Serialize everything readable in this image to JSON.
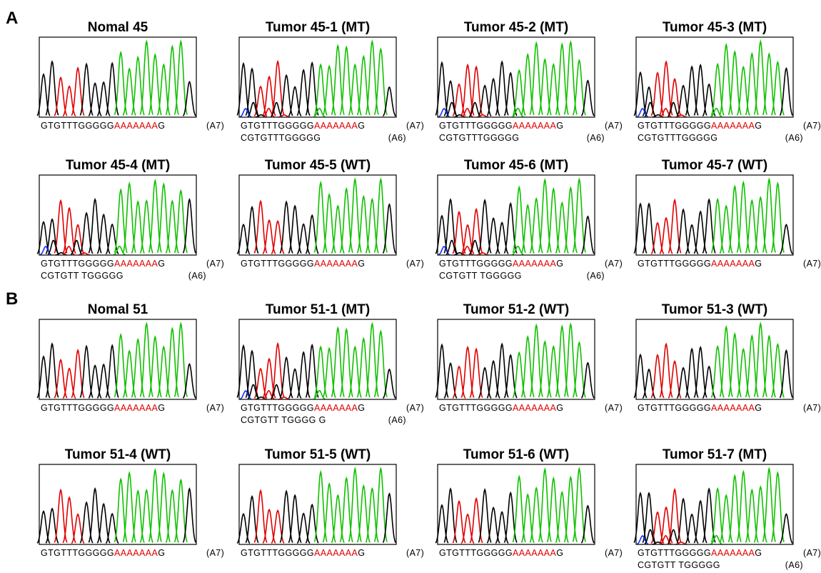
{
  "panels": [
    {
      "label": "A",
      "items": [
        {
          "title": "Nomal 45",
          "seq": {
            "prefix": "GTGTTTGGGGG",
            "repeat": "AAAAAAA",
            "suffix": "G",
            "allele": "(A7)"
          }
        },
        {
          "title": "Tumor 45-1 (MT)",
          "seq": {
            "prefix": "GTGTTTGGGGG",
            "repeat": "AAAAAAA",
            "suffix": "G",
            "allele": "(A7)"
          },
          "seq2": {
            "text": "CGTGTTTGGGGG",
            "allele": "(A6)"
          }
        },
        {
          "title": "Tumor 45-2 (MT)",
          "seq": {
            "prefix": "GTGTTTGGGGG",
            "repeat": "AAAAAAA",
            "suffix": "G",
            "allele": "(A7)"
          },
          "seq2": {
            "text": "CGTGTTTGGGGG",
            "allele": "(A6)"
          }
        },
        {
          "title": "Tumor 45-3 (MT)",
          "seq": {
            "prefix": "GTGTTTGGGGG",
            "repeat": "AAAAAAA",
            "suffix": "G",
            "allele": "(A7)"
          },
          "seq2": {
            "text": "CGTGTTTGGGGG",
            "allele": "(A6)"
          }
        },
        {
          "title": "Tumor 45-4 (MT)",
          "seq": {
            "prefix": "GTGTTTGGGGG",
            "repeat": "AAAAAAA",
            "suffix": "G",
            "allele": "(A7)"
          },
          "seq2": {
            "text": "CGTGTT TGGGGG",
            "allele": "(A6)"
          }
        },
        {
          "title": "Tumor 45-5 (WT)",
          "seq": {
            "prefix": "GTGTTTGGGGG",
            "repeat": "AAAAAAA",
            "suffix": "G",
            "allele": "(A7)"
          }
        },
        {
          "title": "Tumor 45-6 (MT)",
          "seq": {
            "prefix": "GTGTTTGGGGG",
            "repeat": "AAAAAAA",
            "suffix": "G",
            "allele": "(A7)"
          },
          "seq2": {
            "text": "CGTGTT TGGGGG",
            "allele": "(A6)"
          }
        },
        {
          "title": "Tumor 45-7 (WT)",
          "seq": {
            "prefix": "GTGTTTGGGGG",
            "repeat": "AAAAAAA",
            "suffix": "G",
            "allele": "(A7)"
          }
        }
      ]
    },
    {
      "label": "B",
      "items": [
        {
          "title": "Nomal 51",
          "seq": {
            "prefix": "GTGTTTGGGGG",
            "repeat": "AAAAAAA",
            "suffix": "G",
            "allele": "(A7)"
          }
        },
        {
          "title": "Tumor 51-1 (MT)",
          "seq": {
            "prefix": "GTGTTTGGGGG",
            "repeat": "AAAAAAA",
            "suffix": "G",
            "allele": "(A7)"
          },
          "seq2": {
            "text": "CGTGTT TGGGG G",
            "allele": "(A6)"
          }
        },
        {
          "title": "Tumor 51-2 (WT)",
          "seq": {
            "prefix": "GTGTTTGGGGG",
            "repeat": "AAAAAAA",
            "suffix": "G",
            "allele": "(A7)"
          }
        },
        {
          "title": "Tumor 51-3 (WT)",
          "seq": {
            "prefix": "GTGTTTGGGGG",
            "repeat": "AAAAAAA",
            "suffix": "G",
            "allele": "(A7)"
          }
        },
        {
          "title": "Tumor 51-4 (WT)",
          "seq": {
            "prefix": "GTGTTTGGGGG",
            "repeat": "AAAAAAA",
            "suffix": "G",
            "allele": "(A7)"
          }
        },
        {
          "title": "Tumor 51-5 (WT)",
          "seq": {
            "prefix": "GTGTTTGGGGG",
            "repeat": "AAAAAAA",
            "suffix": "G",
            "allele": "(A7)"
          }
        },
        {
          "title": "Tumor 51-6 (WT)",
          "seq": {
            "prefix": "GTGTTTGGGGG",
            "repeat": "AAAAAAA",
            "suffix": "G",
            "allele": "(A7)"
          }
        },
        {
          "title": "Tumor 51-7 (MT)",
          "seq": {
            "prefix": "GTGTTTGGGGG",
            "repeat": "AAAAAAA",
            "suffix": "G",
            "allele": "(A7)"
          },
          "seq2": {
            "text": "CGTGTT TGGGGG",
            "allele": "(A6)"
          }
        }
      ]
    }
  ]
}
